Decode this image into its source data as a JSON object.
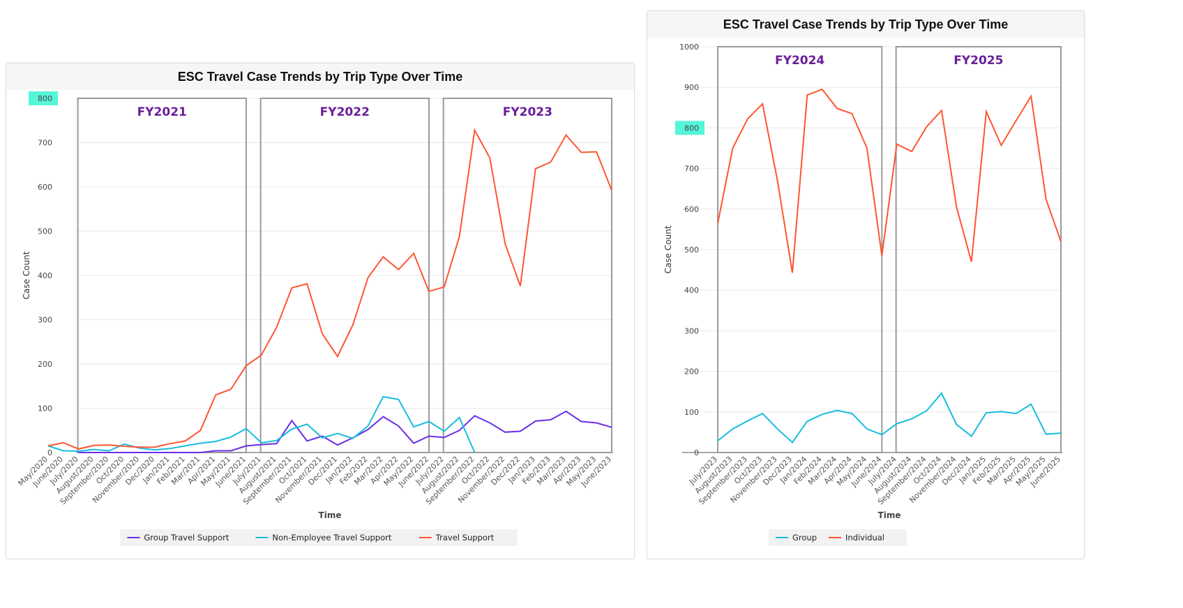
{
  "chart_data": [
    {
      "type": "line",
      "title": "ESC Travel Case Trends by Trip Type Over Time",
      "xlabel": "Time",
      "ylabel": "Case Count",
      "ylim": [
        0,
        800
      ],
      "yticks": [
        "0",
        "100",
        "200",
        "300",
        "400",
        "500",
        "600",
        "700",
        "800"
      ],
      "highlighted_tick": "800",
      "grid": true,
      "legend_position": "bottom",
      "periods": [
        {
          "label": "FY2021",
          "start": "July/2020",
          "end": "June/2021"
        },
        {
          "label": "FY2022",
          "start": "July/2021",
          "end": "June/2022"
        },
        {
          "label": "FY2023",
          "start": "July/2022",
          "end": "June/2023"
        }
      ],
      "categories": [
        "May/2020",
        "June/2020",
        "July/2020",
        "August/2020",
        "September/2020",
        "Oct/2020",
        "November/2020",
        "Dec/2020",
        "Jan/2021",
        "Feb/2021",
        "Mar/2021",
        "Apr/2021",
        "May/2021",
        "June/2021",
        "July/2021",
        "August/2021",
        "September/2021",
        "Oct/2021",
        "November/2021",
        "Dec/2021",
        "Jan/2022",
        "Feb/2022",
        "Mar/2022",
        "Apr/2022",
        "May/2022",
        "June/2022",
        "July/2022",
        "August/2022",
        "September/2022",
        "Oct/2022",
        "November/2022",
        "Dec/2022",
        "Jan/2023",
        "Feb/2023",
        "Mar/2023",
        "Apr/2023",
        "May/2023",
        "June/2023"
      ],
      "series": [
        {
          "name": "Group Travel Support",
          "color": "#6a2ee8",
          "values": [
            null,
            null,
            0,
            0,
            0,
            0,
            0,
            0,
            0,
            0,
            0,
            4,
            4,
            15,
            18,
            20,
            72,
            26,
            37,
            17,
            33,
            52,
            81,
            60,
            21,
            37,
            34,
            50,
            83,
            67,
            46,
            48,
            71,
            74,
            93,
            70,
            67,
            57
          ]
        },
        {
          "name": "Non-Employee Travel Support",
          "color": "#16bde0",
          "values": [
            15,
            4,
            3,
            7,
            4,
            19,
            10,
            6,
            9,
            15,
            21,
            25,
            35,
            54,
            22,
            27,
            53,
            64,
            33,
            43,
            32,
            60,
            126,
            120,
            58,
            70,
            48,
            79,
            0,
            null,
            null,
            null,
            null,
            null,
            null,
            null,
            null,
            null
          ]
        },
        {
          "name": "Travel Support",
          "color": "#ff5532",
          "values": [
            15,
            22,
            8,
            16,
            17,
            14,
            12,
            12,
            20,
            26,
            50,
            130,
            143,
            196,
            220,
            283,
            372,
            381,
            268,
            217,
            288,
            395,
            442,
            413,
            450,
            364,
            374,
            488,
            728,
            665,
            472,
            376,
            641,
            656,
            717,
            678,
            679,
            592
          ]
        }
      ]
    },
    {
      "type": "line",
      "title": "ESC Travel Case Trends by Trip Type Over Time",
      "xlabel": "Time",
      "ylabel": "Case Count",
      "ylim": [
        0,
        1000
      ],
      "yticks": [
        "0",
        "100",
        "200",
        "300",
        "400",
        "500",
        "600",
        "700",
        "800",
        "900",
        "1000"
      ],
      "highlighted_tick": "800",
      "grid": true,
      "legend_position": "bottom",
      "periods": [
        {
          "label": "FY2024",
          "start": "July/2023",
          "end": "June/2024"
        },
        {
          "label": "FY2025",
          "start": "July/2024",
          "end": "June/2025"
        }
      ],
      "categories": [
        "July/2023",
        "August/2023",
        "September/2023",
        "Oct/2023",
        "November/2023",
        "Dec/2023",
        "Jan/2024",
        "Feb/2024",
        "Mar/2024",
        "Apr/2024",
        "May/2024",
        "June/2024",
        "July/2024",
        "August/2024",
        "September/2024",
        "Oct/2024",
        "November/2024",
        "Dec/2024",
        "Jan/2025",
        "Feb/2025",
        "Mar/2025",
        "Apr/2025",
        "May/2025",
        "June/2025"
      ],
      "series": [
        {
          "name": "Group",
          "color": "#16bde0",
          "values": [
            29,
            58,
            78,
            96,
            58,
            25,
            77,
            94,
            104,
            96,
            58,
            44,
            71,
            83,
            103,
            146,
            69,
            40,
            98,
            101,
            96,
            119,
            45,
            48
          ]
        },
        {
          "name": "Individual",
          "color": "#ff5532",
          "values": [
            565,
            750,
            822,
            859,
            670,
            443,
            881,
            895,
            848,
            835,
            750,
            485,
            760,
            742,
            803,
            843,
            605,
            470,
            840,
            757,
            818,
            878,
            624,
            520
          ]
        }
      ]
    }
  ],
  "colors": {
    "highlight": "#55f5d8",
    "period_label": "#6a1f9a",
    "period_frame": "#9a9a9a"
  }
}
